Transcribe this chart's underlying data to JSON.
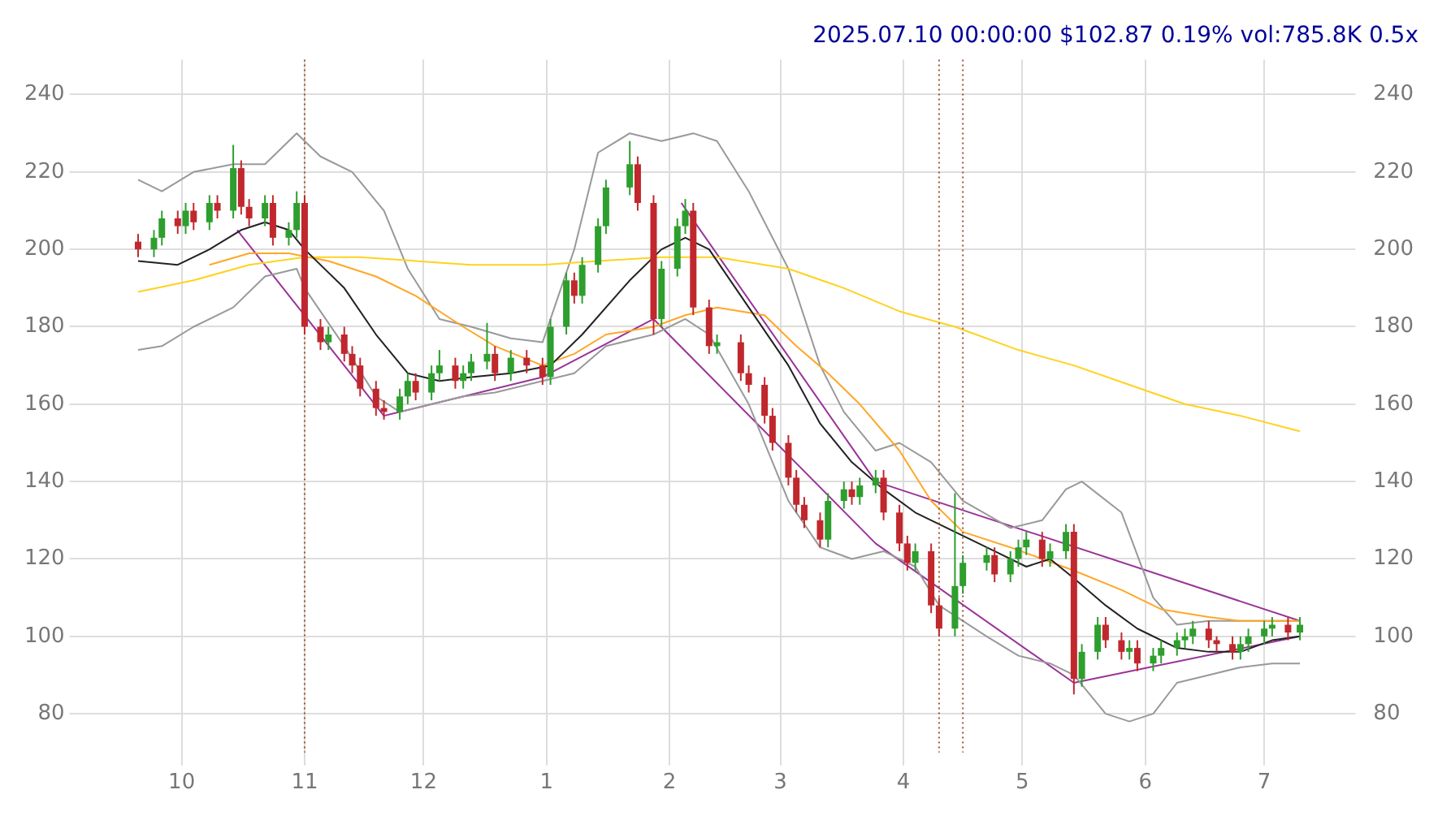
{
  "chart_data": {
    "type": "candlestick",
    "title": "2025.07.10 00:00:00 $102.87 0.19% vol:785.8K 0.5x",
    "x": [
      "2024-09-20",
      "2024-09-24",
      "2024-09-26",
      "2024-09-30",
      "2024-10-02",
      "2024-10-04",
      "2024-10-08",
      "2024-10-10",
      "2024-10-14",
      "2024-10-16",
      "2024-10-18",
      "2024-10-22",
      "2024-10-24",
      "2024-10-28",
      "2024-10-30",
      "2024-11-01",
      "2024-11-05",
      "2024-11-07",
      "2024-11-11",
      "2024-11-13",
      "2024-11-15",
      "2024-11-19",
      "2024-11-21",
      "2024-11-25",
      "2024-11-27",
      "2024-11-29",
      "2024-12-03",
      "2024-12-05",
      "2024-12-09",
      "2024-12-11",
      "2024-12-13",
      "2024-12-17",
      "2024-12-19",
      "2024-12-23",
      "2024-12-27",
      "2024-12-31",
      "2025-01-02",
      "2025-01-06",
      "2025-01-08",
      "2025-01-10",
      "2025-01-14",
      "2025-01-16",
      "2025-01-22",
      "2025-01-24",
      "2025-01-28",
      "2025-01-30",
      "2025-02-03",
      "2025-02-05",
      "2025-02-07",
      "2025-02-11",
      "2025-02-13",
      "2025-02-19",
      "2025-02-21",
      "2025-02-25",
      "2025-02-27",
      "2025-03-03",
      "2025-03-05",
      "2025-03-07",
      "2025-03-11",
      "2025-03-13",
      "2025-03-17",
      "2025-03-19",
      "2025-03-21",
      "2025-03-25",
      "2025-03-27",
      "2025-03-31",
      "2025-04-02",
      "2025-04-04",
      "2025-04-08",
      "2025-04-10",
      "2025-04-14",
      "2025-04-16",
      "2025-04-22",
      "2025-04-24",
      "2025-04-28",
      "2025-04-30",
      "2025-05-02",
      "2025-05-06",
      "2025-05-08",
      "2025-05-12",
      "2025-05-14",
      "2025-05-16",
      "2025-05-20",
      "2025-05-22",
      "2025-05-26",
      "2025-05-28",
      "2025-05-30",
      "2025-06-03",
      "2025-06-05",
      "2025-06-09",
      "2025-06-11",
      "2025-06-13",
      "2025-06-17",
      "2025-06-19",
      "2025-06-23",
      "2025-06-25",
      "2025-06-27",
      "2025-07-01",
      "2025-07-03",
      "2025-07-07",
      "2025-07-10"
    ],
    "ohlc": [
      [
        202,
        204,
        198,
        200
      ],
      [
        200,
        205,
        198,
        203
      ],
      [
        203,
        210,
        201,
        208
      ],
      [
        208,
        210,
        204,
        206
      ],
      [
        206,
        212,
        204,
        210
      ],
      [
        210,
        212,
        205,
        207
      ],
      [
        207,
        214,
        205,
        212
      ],
      [
        212,
        214,
        208,
        210
      ],
      [
        210,
        227,
        208,
        221
      ],
      [
        221,
        223,
        209,
        211
      ],
      [
        211,
        213,
        206,
        208
      ],
      [
        208,
        214,
        206,
        212
      ],
      [
        212,
        214,
        201,
        203
      ],
      [
        203,
        207,
        201,
        205
      ],
      [
        205,
        215,
        203,
        212
      ],
      [
        212,
        214,
        178,
        180
      ],
      [
        180,
        182,
        174,
        176
      ],
      [
        176,
        180,
        174,
        178
      ],
      [
        178,
        180,
        171,
        173
      ],
      [
        173,
        175,
        168,
        170
      ],
      [
        170,
        172,
        162,
        164
      ],
      [
        164,
        166,
        157,
        159
      ],
      [
        159,
        161,
        156,
        158
      ],
      [
        158,
        164,
        156,
        162
      ],
      [
        162,
        168,
        160,
        166
      ],
      [
        166,
        168,
        161,
        163
      ],
      [
        163,
        170,
        161,
        168
      ],
      [
        168,
        174,
        166,
        170
      ],
      [
        170,
        172,
        164,
        166
      ],
      [
        166,
        170,
        164,
        168
      ],
      [
        168,
        173,
        166,
        171
      ],
      [
        171,
        181,
        169,
        173
      ],
      [
        173,
        175,
        166,
        168
      ],
      [
        168,
        174,
        166,
        172
      ],
      [
        172,
        174,
        168,
        170
      ],
      [
        170,
        172,
        165,
        167
      ],
      [
        167,
        182,
        165,
        180
      ],
      [
        180,
        194,
        178,
        192
      ],
      [
        192,
        194,
        186,
        188
      ],
      [
        188,
        198,
        186,
        196
      ],
      [
        196,
        208,
        194,
        206
      ],
      [
        206,
        218,
        204,
        216
      ],
      [
        216,
        228,
        214,
        222
      ],
      [
        222,
        224,
        210,
        212
      ],
      [
        212,
        214,
        178,
        182
      ],
      [
        182,
        197,
        180,
        195
      ],
      [
        195,
        208,
        193,
        206
      ],
      [
        206,
        213,
        204,
        210
      ],
      [
        210,
        212,
        183,
        185
      ],
      [
        185,
        187,
        173,
        175
      ],
      [
        175,
        178,
        173,
        176
      ],
      [
        176,
        178,
        166,
        168
      ],
      [
        168,
        170,
        163,
        165
      ],
      [
        165,
        167,
        155,
        157
      ],
      [
        157,
        159,
        148,
        150
      ],
      [
        150,
        152,
        139,
        141
      ],
      [
        141,
        143,
        132,
        134
      ],
      [
        134,
        136,
        128,
        130
      ],
      [
        130,
        132,
        123,
        125
      ],
      [
        125,
        137,
        123,
        135
      ],
      [
        135,
        140,
        133,
        138
      ],
      [
        138,
        140,
        134,
        136
      ],
      [
        136,
        141,
        134,
        139
      ],
      [
        139,
        143,
        137,
        141
      ],
      [
        141,
        143,
        130,
        132
      ],
      [
        132,
        134,
        122,
        124
      ],
      [
        124,
        126,
        117,
        119
      ],
      [
        119,
        124,
        117,
        122
      ],
      [
        122,
        124,
        106,
        108
      ],
      [
        108,
        110,
        100,
        102
      ],
      [
        102,
        137,
        100,
        113
      ],
      [
        113,
        121,
        111,
        119
      ],
      [
        119,
        123,
        117,
        121
      ],
      [
        121,
        123,
        114,
        116
      ],
      [
        116,
        122,
        114,
        120
      ],
      [
        120,
        125,
        118,
        123
      ],
      [
        123,
        127,
        121,
        125
      ],
      [
        125,
        127,
        118,
        120
      ],
      [
        120,
        124,
        118,
        122
      ],
      [
        122,
        129,
        120,
        127
      ],
      [
        127,
        129,
        85,
        89
      ],
      [
        89,
        98,
        87,
        96
      ],
      [
        96,
        105,
        94,
        103
      ],
      [
        103,
        105,
        97,
        99
      ],
      [
        99,
        101,
        94,
        96
      ],
      [
        96,
        99,
        94,
        97
      ],
      [
        97,
        99,
        91,
        93
      ],
      [
        93,
        97,
        91,
        95
      ],
      [
        95,
        99,
        93,
        97
      ],
      [
        97,
        101,
        95,
        99
      ],
      [
        99,
        102,
        97,
        100
      ],
      [
        100,
        104,
        98,
        102
      ],
      [
        102,
        104,
        97,
        99
      ],
      [
        99,
        100,
        96,
        98
      ],
      [
        98,
        100,
        94,
        96
      ],
      [
        96,
        100,
        94,
        98
      ],
      [
        98,
        102,
        96,
        100
      ],
      [
        100,
        104,
        98,
        102
      ],
      [
        102,
        105,
        100,
        103
      ],
      [
        103,
        105,
        99,
        101
      ],
      [
        101,
        105,
        99,
        103
      ]
    ],
    "colors": [
      "#c0282d",
      "#2e9e2e",
      "#2e9e2e",
      "#c0282d",
      "#2e9e2e",
      "#c0282d",
      "#2e9e2e",
      "#c0282d",
      "#2e9e2e",
      "#c0282d",
      "#c0282d",
      "#2e9e2e",
      "#c0282d",
      "#2e9e2e",
      "#2e9e2e",
      "#c0282d",
      "#c0282d",
      "#2e9e2e",
      "#c0282d",
      "#c0282d",
      "#c0282d",
      "#c0282d",
      "#c0282d",
      "#2e9e2e",
      "#2e9e2e",
      "#c0282d",
      "#2e9e2e",
      "#2e9e2e",
      "#c0282d",
      "#2e9e2e",
      "#2e9e2e",
      "#2e9e2e",
      "#c0282d",
      "#2e9e2e",
      "#c0282d",
      "#c0282d",
      "#2e9e2e",
      "#2e9e2e",
      "#c0282d",
      "#2e9e2e",
      "#2e9e2e",
      "#2e9e2e",
      "#2e9e2e",
      "#c0282d",
      "#c0282d",
      "#2e9e2e",
      "#2e9e2e",
      "#2e9e2e",
      "#c0282d",
      "#c0282d",
      "#2e9e2e",
      "#c0282d",
      "#c0282d",
      "#c0282d",
      "#c0282d",
      "#c0282d",
      "#c0282d",
      "#c0282d",
      "#c0282d",
      "#2e9e2e",
      "#2e9e2e",
      "#c0282d",
      "#2e9e2e",
      "#2e9e2e",
      "#c0282d",
      "#c0282d",
      "#c0282d",
      "#2e9e2e",
      "#c0282d",
      "#c0282d",
      "#2e9e2e",
      "#2e9e2e",
      "#2e9e2e",
      "#c0282d",
      "#2e9e2e",
      "#2e9e2e",
      "#2e9e2e",
      "#c0282d",
      "#2e9e2e",
      "#2e9e2e",
      "#c0282d",
      "#2e9e2e",
      "#2e9e2e",
      "#c0282d",
      "#c0282d",
      "#2e9e2e",
      "#c0282d",
      "#2e9e2e",
      "#2e9e2e",
      "#2e9e2e",
      "#2e9e2e",
      "#2e9e2e",
      "#c0282d",
      "#c0282d",
      "#c0282d",
      "#2e9e2e",
      "#2e9e2e",
      "#2e9e2e",
      "#2e9e2e",
      "#c0282d",
      "#2e9e2e"
    ],
    "series": [
      {
        "type": "line",
        "color": "#222222",
        "x": [
          "2024-09-20",
          "2024-09-30",
          "2024-10-08",
          "2024-10-16",
          "2024-10-22",
          "2024-10-28",
          "2024-11-01",
          "2024-11-11",
          "2024-11-19",
          "2024-11-27",
          "2024-12-05",
          "2024-12-13",
          "2024-12-23",
          "2025-01-02",
          "2025-01-10",
          "2025-01-22",
          "2025-01-30",
          "2025-02-05",
          "2025-02-11",
          "2025-02-21",
          "2025-03-03",
          "2025-03-11",
          "2025-03-19",
          "2025-03-27",
          "2025-04-04",
          "2025-04-14",
          "2025-04-24",
          "2025-05-02",
          "2025-05-08",
          "2025-05-14",
          "2025-05-22",
          "2025-05-30",
          "2025-06-09",
          "2025-06-17",
          "2025-06-25",
          "2025-07-03",
          "2025-07-10"
        ],
        "values": [
          197,
          196,
          200,
          205,
          207,
          205,
          200,
          190,
          178,
          168,
          166,
          167,
          168,
          170,
          178,
          192,
          200,
          203,
          200,
          185,
          170,
          155,
          145,
          138,
          132,
          127,
          122,
          118,
          120,
          115,
          108,
          102,
          97,
          96,
          96,
          99,
          100
        ]
      },
      {
        "type": "line",
        "color": "#ffa726",
        "x": [
          "2024-10-08",
          "2024-10-18",
          "2024-10-28",
          "2024-11-07",
          "2024-11-19",
          "2024-11-29",
          "2024-12-11",
          "2024-12-19",
          "2024-12-31",
          "2025-01-08",
          "2025-01-16",
          "2025-01-28",
          "2025-02-05",
          "2025-02-13",
          "2025-02-25",
          "2025-03-05",
          "2025-03-13",
          "2025-03-21",
          "2025-03-31",
          "2025-04-08",
          "2025-04-16",
          "2025-04-28",
          "2025-05-06",
          "2025-05-14",
          "2025-05-26",
          "2025-06-05",
          "2025-06-17",
          "2025-06-25",
          "2025-07-03",
          "2025-07-10"
        ],
        "values": [
          196,
          199,
          199,
          197,
          193,
          188,
          180,
          175,
          170,
          173,
          178,
          180,
          183,
          185,
          183,
          175,
          168,
          160,
          148,
          135,
          127,
          123,
          120,
          117,
          112,
          107,
          105,
          104,
          104,
          104
        ]
      },
      {
        "type": "line",
        "color": "#ffd21f",
        "x": [
          "2024-09-20",
          "2024-10-04",
          "2024-10-18",
          "2024-11-01",
          "2024-11-15",
          "2024-11-29",
          "2024-12-13",
          "2024-12-31",
          "2025-01-14",
          "2025-01-30",
          "2025-02-13",
          "2025-03-03",
          "2025-03-17",
          "2025-03-31",
          "2025-04-14",
          "2025-04-30",
          "2025-05-14",
          "2025-05-28",
          "2025-06-11",
          "2025-06-25",
          "2025-07-10"
        ],
        "values": [
          189,
          192,
          196,
          198,
          198,
          197,
          196,
          196,
          197,
          198,
          198,
          195,
          190,
          184,
          180,
          174,
          170,
          165,
          160,
          157,
          153
        ]
      },
      {
        "type": "line",
        "color": "#999999",
        "x": [
          "2024-09-20",
          "2024-09-26",
          "2024-10-04",
          "2024-10-14",
          "2024-10-22",
          "2024-10-30",
          "2024-11-05",
          "2024-11-13",
          "2024-11-21",
          "2024-11-27",
          "2024-12-05",
          "2024-12-13",
          "2024-12-23",
          "2024-12-31",
          "2025-01-08",
          "2025-01-14",
          "2025-01-22",
          "2025-01-30",
          "2025-02-07",
          "2025-02-13",
          "2025-02-21",
          "2025-03-03",
          "2025-03-11",
          "2025-03-17",
          "2025-03-25",
          "2025-03-31",
          "2025-04-08",
          "2025-04-16",
          "2025-04-28",
          "2025-05-06",
          "2025-05-12",
          "2025-05-16",
          "2025-05-26",
          "2025-06-03",
          "2025-06-09",
          "2025-06-17",
          "2025-06-25",
          "2025-07-03",
          "2025-07-10"
        ],
        "values": [
          218,
          215,
          220,
          222,
          222,
          230,
          224,
          220,
          210,
          195,
          182,
          180,
          177,
          176,
          200,
          225,
          230,
          228,
          230,
          228,
          215,
          195,
          170,
          158,
          148,
          150,
          145,
          135,
          128,
          130,
          138,
          140,
          132,
          110,
          103,
          104,
          104,
          104,
          104
        ]
      },
      {
        "type": "line",
        "color": "#999999",
        "x": [
          "2024-09-20",
          "2024-09-26",
          "2024-10-04",
          "2024-10-14",
          "2024-10-22",
          "2024-10-30",
          "2024-11-01",
          "2024-11-11",
          "2024-11-19",
          "2024-11-25",
          "2024-12-03",
          "2024-12-11",
          "2024-12-19",
          "2024-12-31",
          "2025-01-08",
          "2025-01-16",
          "2025-01-28",
          "2025-02-05",
          "2025-02-11",
          "2025-02-21",
          "2025-03-03",
          "2025-03-11",
          "2025-03-19",
          "2025-03-27",
          "2025-04-04",
          "2025-04-10",
          "2025-04-22",
          "2025-04-30",
          "2025-05-08",
          "2025-05-14",
          "2025-05-22",
          "2025-05-28",
          "2025-06-03",
          "2025-06-09",
          "2025-06-17",
          "2025-06-25",
          "2025-07-03",
          "2025-07-10"
        ],
        "values": [
          174,
          175,
          180,
          185,
          193,
          195,
          190,
          175,
          162,
          158,
          160,
          162,
          163,
          166,
          168,
          175,
          178,
          182,
          178,
          160,
          135,
          123,
          120,
          122,
          118,
          108,
          100,
          95,
          93,
          90,
          80,
          78,
          80,
          88,
          90,
          92,
          93,
          93
        ]
      },
      {
        "type": "line",
        "color": "#993399",
        "x": [
          "2024-10-15",
          "2024-11-21",
          "2024-12-31",
          "2025-01-28",
          "2025-03-25",
          "2025-05-14",
          "2025-07-10"
        ],
        "values": [
          205,
          157,
          167,
          182,
          124,
          88,
          100
        ]
      },
      {
        "type": "line",
        "color": "#993399",
        "x": [
          "2025-02-04",
          "2025-03-25",
          "2025-07-10"
        ],
        "values": [
          212,
          140,
          104
        ]
      }
    ],
    "ref_lines": [
      {
        "axis": "x",
        "value": "2024-11-01",
        "color": "#a0522d",
        "line_style": "dotted"
      },
      {
        "axis": "x",
        "value": "2025-04-10",
        "color": "#a0522d",
        "line_style": "dotted"
      },
      {
        "axis": "x",
        "value": "2025-04-16",
        "color": "#a0522d",
        "line_style": "dotted"
      }
    ],
    "xlim": [
      "2024-09-06",
      "2025-07-24"
    ],
    "xticks": [
      {
        "value": "2024-10-01",
        "label": "10"
      },
      {
        "value": "2024-11-01",
        "label": "11"
      },
      {
        "value": "2024-12-01",
        "label": "12"
      },
      {
        "value": "2025-01-01",
        "label": "1"
      },
      {
        "value": "2025-02-01",
        "label": "2"
      },
      {
        "value": "2025-03-01",
        "label": "3"
      },
      {
        "value": "2025-04-01",
        "label": "4"
      },
      {
        "value": "2025-05-01",
        "label": "5"
      },
      {
        "value": "2025-06-01",
        "label": "6"
      },
      {
        "value": "2025-07-01",
        "label": "7"
      }
    ],
    "ylim": [
      70,
      249
    ],
    "yticks": [
      80,
      100,
      120,
      140,
      160,
      180,
      200,
      220,
      240
    ],
    "y2lim": [
      70,
      249
    ],
    "y2ticks": [
      80,
      100,
      120,
      140,
      160,
      180,
      200,
      220,
      240
    ],
    "grid": true,
    "legend": false
  }
}
